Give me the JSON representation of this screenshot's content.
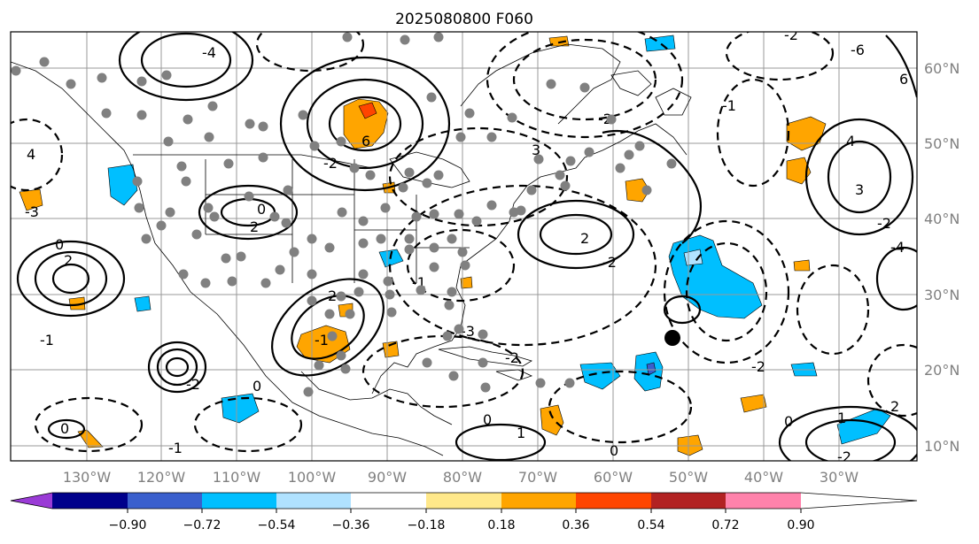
{
  "title": "2025080800 F060",
  "lon_ticks": [
    "130°W",
    "120°W",
    "110°W",
    "100°W",
    "90°W",
    "80°W",
    "70°W",
    "60°W",
    "50°W",
    "40°W",
    "30°W"
  ],
  "lat_ticks": [
    "60°N",
    "50°N",
    "40°N",
    "30°N",
    "20°N",
    "10°N"
  ],
  "colorbar": {
    "ticks": [
      "−0.90",
      "−0.72",
      "−0.54",
      "−0.36",
      "−0.18",
      "0.18",
      "0.36",
      "0.54",
      "0.72",
      "0.90"
    ],
    "colors": [
      "#9a3bd6",
      "#00008b",
      "#3a5fcd",
      "#00bfff",
      "#b0e2ff",
      "#ffffff",
      "#ffe88a",
      "#ffa500",
      "#ff4500",
      "#b22222",
      "#ff82ab"
    ]
  },
  "contour_labels": [
    "4",
    "6",
    "-2",
    "2",
    "-4",
    "3",
    "-2",
    "-1",
    "0",
    "-2",
    "2",
    "-3",
    "0",
    "-6",
    "4",
    "2",
    "-2",
    "2",
    "-1",
    "0",
    "3",
    "-2",
    "6",
    "-2",
    "-1",
    "-2",
    "-3",
    "-1",
    "0",
    "0",
    "1",
    "2",
    "1",
    "-1",
    "0",
    "-2",
    "-4",
    "-2",
    "0"
  ]
}
